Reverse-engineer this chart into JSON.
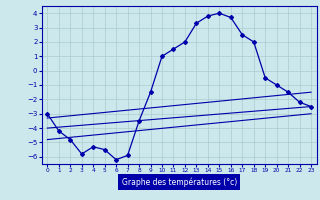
{
  "xlabel": "Graphe des températures (°c)",
  "hours": [
    0,
    1,
    2,
    3,
    4,
    5,
    6,
    7,
    8,
    9,
    10,
    11,
    12,
    13,
    14,
    15,
    16,
    17,
    18,
    19,
    20,
    21,
    22,
    23
  ],
  "temps": [
    -3.0,
    -4.2,
    -4.8,
    -5.8,
    -5.3,
    -5.5,
    -6.2,
    -5.9,
    -3.5,
    -1.5,
    1.0,
    1.5,
    2.0,
    3.3,
    3.8,
    4.0,
    3.7,
    2.5,
    2.0,
    -0.5,
    -1.0,
    -1.5,
    -2.2,
    -2.5
  ],
  "trend1_x": [
    0,
    23
  ],
  "trend1_y": [
    -3.3,
    -1.5
  ],
  "trend2_x": [
    0,
    23
  ],
  "trend2_y": [
    -4.0,
    -2.5
  ],
  "trend3_x": [
    0,
    23
  ],
  "trend3_y": [
    -4.8,
    -3.0
  ],
  "ylim": [
    -6.5,
    4.5
  ],
  "xlim": [
    -0.5,
    23.5
  ],
  "yticks": [
    -6,
    -5,
    -4,
    -3,
    -2,
    -1,
    0,
    1,
    2,
    3,
    4
  ],
  "xticks": [
    0,
    1,
    2,
    3,
    4,
    5,
    6,
    7,
    8,
    9,
    10,
    11,
    12,
    13,
    14,
    15,
    16,
    17,
    18,
    19,
    20,
    21,
    22,
    23
  ],
  "line_color": "#0000aa",
  "bg_color": "#cce8ec",
  "grid_color": "#aacccc",
  "xlabel_bg": "#0000aa",
  "xlabel_fg": "#ffffff"
}
